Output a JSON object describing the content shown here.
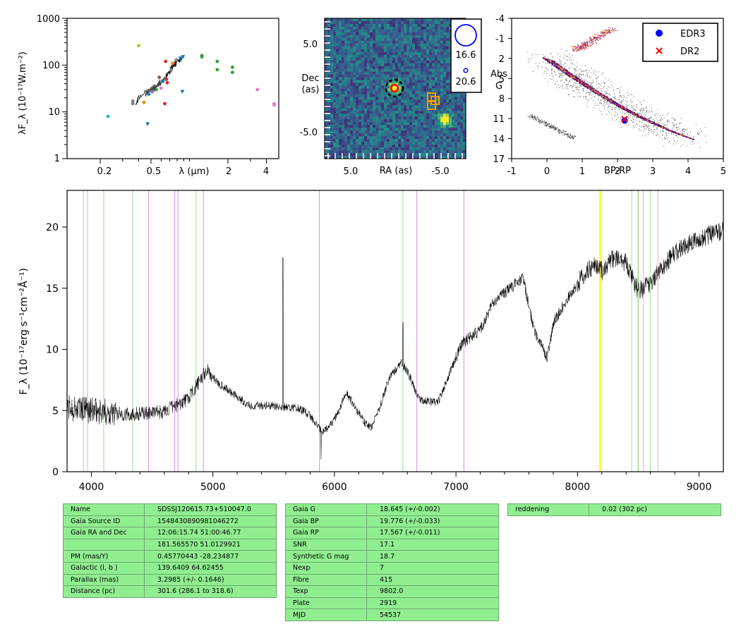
{
  "colors": {
    "axis": "#000000",
    "table_bg": "#90ee90",
    "legend_edr3": "#0000ff",
    "legend_dr2": "#ff0000",
    "line_pink": "#f4a6b4",
    "line_green": "#8fe68f",
    "line_violet": "#d48fe0",
    "line_yellow": "#ffff33",
    "aperture": "#ff9900"
  },
  "sed": {
    "ylabel": "λF_λ (10⁻¹⁷W.m⁻²)",
    "xlabel": "λ (μm)",
    "yticks": [
      "1",
      "10",
      "100",
      "1000"
    ],
    "xticks": [
      "0.2",
      "0.5",
      "2",
      "4"
    ]
  },
  "image": {
    "ylabel_line1": "Dec",
    "ylabel_line2": "(as)",
    "xlabel": "RA (as)",
    "yticks": [
      "5.0",
      "-5.0"
    ],
    "xticks": [
      "5.0",
      "-5.0"
    ],
    "mag_big": "16.6",
    "mag_small": "20.6"
  },
  "hrd": {
    "xlabel": "BP-RP",
    "ylabel_line1": "Abs",
    "ylabel_line2": "G",
    "yticks": [
      "-4",
      "-1",
      "2",
      "5",
      "8",
      "11",
      "14",
      "17"
    ],
    "xticks": [
      "-1",
      "0",
      "1",
      "2",
      "3",
      "4",
      "5"
    ],
    "legend": [
      "EDR3",
      "DR2"
    ]
  },
  "chart_data": [
    {
      "type": "scatter",
      "xscale": "log",
      "yscale": "log",
      "xlim": [
        0.11,
        5.0
      ],
      "ylim": [
        1,
        1000
      ],
      "xlabel": "λ (μm)",
      "ylabel": "λF_λ (10⁻¹⁷W.m⁻²)",
      "points": [
        {
          "x": 0.23,
          "y": 8,
          "c": "#17becf",
          "m": "o"
        },
        {
          "x": 0.36,
          "y": 15,
          "c": "#7f7f7f",
          "m": "o"
        },
        {
          "x": 0.36,
          "y": 17,
          "c": "#7f7f7f",
          "m": "o"
        },
        {
          "x": 0.4,
          "y": 260,
          "c": "#bcbd22",
          "m": "o"
        },
        {
          "x": 0.44,
          "y": 16,
          "c": "#ff7f0e",
          "m": "o"
        },
        {
          "x": 0.47,
          "y": 5.5,
          "c": "#1f77b4",
          "m": "v"
        },
        {
          "x": 0.48,
          "y": 24,
          "c": "#1f77b4",
          "m": "o"
        },
        {
          "x": 0.51,
          "y": 27,
          "c": "#9467bd",
          "m": "o"
        },
        {
          "x": 0.55,
          "y": 30,
          "c": "#2ca02c",
          "m": "o"
        },
        {
          "x": 0.58,
          "y": 55,
          "c": "#8c564b",
          "m": "o"
        },
        {
          "x": 0.6,
          "y": 32,
          "c": "#e377c2",
          "m": "o"
        },
        {
          "x": 0.62,
          "y": 45,
          "c": "#1f77b4",
          "m": "o"
        },
        {
          "x": 0.64,
          "y": 15,
          "c": "#d62728",
          "m": "o"
        },
        {
          "x": 0.65,
          "y": 120,
          "c": "#d62728",
          "m": "o"
        },
        {
          "x": 0.66,
          "y": 50,
          "c": "#d62728",
          "m": "o"
        },
        {
          "x": 0.67,
          "y": 42,
          "c": "#d62728",
          "m": "o"
        },
        {
          "x": 0.72,
          "y": 80,
          "c": "#7f7f7f",
          "m": "o"
        },
        {
          "x": 0.74,
          "y": 110,
          "c": "#ff7f0e",
          "m": "o"
        },
        {
          "x": 0.79,
          "y": 130,
          "c": "#7f7f7f",
          "m": "o"
        },
        {
          "x": 0.85,
          "y": 140,
          "c": "#1f77b4",
          "m": "v"
        },
        {
          "x": 0.88,
          "y": 27,
          "c": "#1f77b4",
          "m": "v"
        },
        {
          "x": 0.89,
          "y": 150,
          "c": "#1f77b4",
          "m": "v"
        },
        {
          "x": 1.25,
          "y": 160,
          "c": "#2ca02c",
          "m": "o"
        },
        {
          "x": 1.25,
          "y": 150,
          "c": "#2ca02c",
          "m": "o"
        },
        {
          "x": 1.65,
          "y": 120,
          "c": "#2ca02c",
          "m": "o"
        },
        {
          "x": 1.65,
          "y": 80,
          "c": "#2ca02c",
          "m": "o"
        },
        {
          "x": 2.17,
          "y": 70,
          "c": "#2ca02c",
          "m": "o"
        },
        {
          "x": 2.17,
          "y": 90,
          "c": "#2ca02c",
          "m": "o"
        },
        {
          "x": 3.4,
          "y": 30,
          "c": "#e377c2",
          "m": "o"
        },
        {
          "x": 4.6,
          "y": 15,
          "c": "#e377c2",
          "m": "o"
        },
        {
          "x": 4.6,
          "y": 14,
          "c": "#e377c2",
          "m": "o"
        }
      ],
      "spectrum_segment": [
        [
          0.38,
          14
        ],
        [
          0.4,
          20
        ],
        [
          0.45,
          25
        ],
        [
          0.5,
          30
        ],
        [
          0.55,
          35
        ],
        [
          0.6,
          45
        ],
        [
          0.65,
          55
        ],
        [
          0.7,
          75
        ],
        [
          0.75,
          100
        ],
        [
          0.8,
          120
        ],
        [
          0.85,
          130
        ],
        [
          0.9,
          160
        ]
      ]
    },
    {
      "type": "heatmap",
      "xlim": [
        10,
        -10
      ],
      "ylim": [
        -10,
        10
      ],
      "xlabel": "RA (as)",
      "ylabel": "Dec (as)",
      "sources": [
        {
          "ra": 0.0,
          "dec": 0.0,
          "brightness": 0.9
        },
        {
          "ra": -7.0,
          "dec": -4.5,
          "brightness": 1.0
        }
      ]
    },
    {
      "type": "scatter",
      "xlim": [
        -1,
        5
      ],
      "ylim": [
        17,
        -4
      ],
      "xlabel": "BP-RP",
      "ylabel": "Abs G",
      "series": [
        {
          "name": "EDR3",
          "points": [
            [
              2.22,
              11.3
            ]
          ]
        },
        {
          "name": "DR2",
          "points": [
            [
              2.22,
              11.1
            ]
          ]
        }
      ]
    },
    {
      "type": "line",
      "xlim": [
        3800,
        9200
      ],
      "ylim": [
        0,
        23
      ],
      "xticks": [
        "4000",
        "5000",
        "6000",
        "7000",
        "8000",
        "9000"
      ],
      "yticks": [
        "0",
        "5",
        "10",
        "15",
        "20"
      ],
      "ylabel": "F_λ (10⁻¹⁷erg s⁻¹cm⁻²Å⁻¹)",
      "continuum": [
        [
          3800,
          5.2
        ],
        [
          4000,
          5.0
        ],
        [
          4300,
          4.7
        ],
        [
          4600,
          4.9
        ],
        [
          4800,
          6.0
        ],
        [
          4950,
          8.3
        ],
        [
          5050,
          7.2
        ],
        [
          5300,
          5.4
        ],
        [
          5500,
          5.4
        ],
        [
          5700,
          5.2
        ],
        [
          5800,
          4.6
        ],
        [
          5900,
          3.2
        ],
        [
          6000,
          4.2
        ],
        [
          6100,
          6.4
        ],
        [
          6200,
          4.8
        ],
        [
          6250,
          4.0
        ],
        [
          6300,
          3.6
        ],
        [
          6350,
          4.6
        ],
        [
          6450,
          7.6
        ],
        [
          6550,
          9.0
        ],
        [
          6600,
          8.2
        ],
        [
          6700,
          5.9
        ],
        [
          6850,
          5.6
        ],
        [
          6950,
          8.1
        ],
        [
          7050,
          10.5
        ],
        [
          7200,
          11.6
        ],
        [
          7300,
          13.7
        ],
        [
          7400,
          14.6
        ],
        [
          7550,
          15.9
        ],
        [
          7600,
          13.5
        ],
        [
          7650,
          11.4
        ],
        [
          7750,
          9.3
        ],
        [
          7800,
          12.1
        ],
        [
          7900,
          13.9
        ],
        [
          8050,
          16.1
        ],
        [
          8150,
          17.0
        ],
        [
          8200,
          16.4
        ],
        [
          8300,
          17.5
        ],
        [
          8400,
          17.1
        ],
        [
          8500,
          14.8
        ],
        [
          8550,
          15.0
        ],
        [
          8700,
          16.6
        ],
        [
          8800,
          18.0
        ],
        [
          9000,
          19.0
        ],
        [
          9200,
          19.8
        ]
      ],
      "spikes": [
        [
          5577,
          17.5
        ],
        [
          5890,
          1.0
        ],
        [
          6563,
          12.2
        ]
      ],
      "vlines": [
        {
          "x": 3934,
          "c": "pink"
        },
        {
          "x": 3969,
          "c": "pink"
        },
        {
          "x": 4102,
          "c": "green"
        },
        {
          "x": 4341,
          "c": "green"
        },
        {
          "x": 4861,
          "c": "green"
        },
        {
          "x": 4471,
          "c": "violet"
        },
        {
          "x": 4686,
          "c": "violet"
        },
        {
          "x": 4713,
          "c": "violet"
        },
        {
          "x": 4922,
          "c": "violet"
        },
        {
          "x": 5876,
          "c": "violet"
        },
        {
          "x": 6563,
          "c": "green"
        },
        {
          "x": 6678,
          "c": "violet"
        },
        {
          "x": 7065,
          "c": "violet"
        },
        {
          "x": 8183,
          "c": "yellow"
        },
        {
          "x": 8195,
          "c": "yellow"
        },
        {
          "x": 8446,
          "c": "green"
        },
        {
          "x": 8498,
          "c": "pink"
        },
        {
          "x": 8502,
          "c": "green"
        },
        {
          "x": 8542,
          "c": "pink"
        },
        {
          "x": 8598,
          "c": "green"
        },
        {
          "x": 8662,
          "c": "pink"
        }
      ]
    }
  ],
  "tables": {
    "t1": [
      [
        "Name",
        "SDSSJ120615.73+510047.0"
      ],
      [
        "Gaia Source ID",
        "1548430890981046272"
      ],
      [
        "Gaia RA and Dec",
        "12:06:15.74    51:00:46.77"
      ],
      [
        "",
        "181.565570    51.0129921"
      ],
      [
        "PM (mas/Y)",
        "0.45770443    -28.234877"
      ],
      [
        "Galactic (l, b )",
        "139.6409    64.62455"
      ],
      [
        "Parallax (mas)",
        "3.2985 (+/- 0.1646)"
      ],
      [
        "Distance (pc)",
        "301.6 (286.1 to 318.6)"
      ]
    ],
    "t2": [
      [
        "Gaia G",
        "18.645 (+/-0.002)"
      ],
      [
        "Gaia BP",
        "19.776 (+/-0.033)"
      ],
      [
        "Gaia RP",
        "17.567 (+/-0.011)"
      ],
      [
        "SNR",
        "17.1"
      ],
      [
        "Synthetic G mag",
        "18.7"
      ],
      [
        "Nexp",
        "7"
      ],
      [
        "Fibre",
        "415"
      ],
      [
        "Texp",
        "9802.0"
      ],
      [
        "Plate",
        "2919"
      ],
      [
        "MJD",
        "54537"
      ]
    ],
    "t3": [
      [
        "reddening",
        "0.02 (302 pc)"
      ]
    ]
  }
}
